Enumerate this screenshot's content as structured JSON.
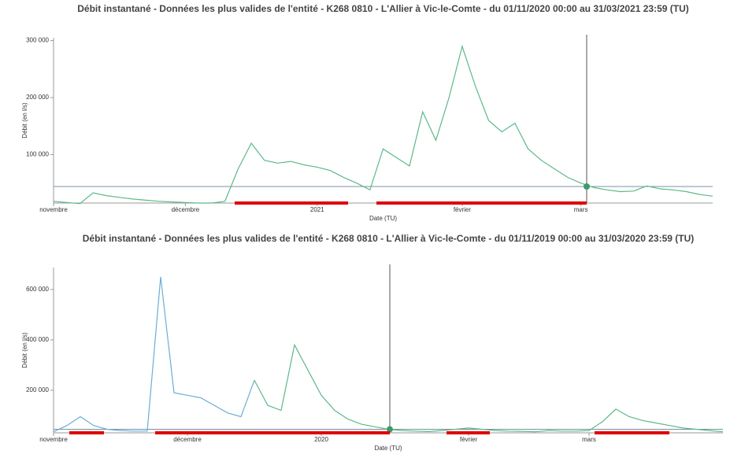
{
  "chart_data": [
    {
      "type": "line",
      "title": "Débit instantané - Données les plus valides de l'entité - K268 0810 - L'Allier à Vic-le-Comte - du 01/11/2020 00:00 au 31/03/2021 23:59 (TU)",
      "x_label": "Date (TU)",
      "y_label": "Débit (en l/s)",
      "categories": [
        "novembre",
        null,
        null,
        null,
        null,
        null,
        null,
        null,
        null,
        null,
        "décembre",
        null,
        null,
        null,
        null,
        null,
        null,
        null,
        null,
        null,
        "2021",
        null,
        null,
        null,
        null,
        null,
        null,
        null,
        null,
        null,
        null,
        "février",
        null,
        null,
        null,
        null,
        null,
        null,
        null,
        null,
        "mars",
        null,
        null,
        null,
        null,
        null,
        null,
        null,
        null,
        null,
        null
      ],
      "series": [
        {
          "color": "#5cb98a",
          "values": [
            18000,
            16000,
            14000,
            33000,
            28000,
            25000,
            22000,
            20000,
            18000,
            17000,
            16000,
            15000,
            15000,
            18000,
            75000,
            120000,
            90000,
            85000,
            88000,
            82000,
            78000,
            72000,
            60000,
            50000,
            38000,
            110000,
            95000,
            80000,
            175000,
            125000,
            200000,
            290000,
            220000,
            160000,
            140000,
            155000,
            110000,
            90000,
            75000,
            60000,
            50000,
            42000,
            38000,
            35000,
            36000,
            45000,
            40000,
            38000,
            35000,
            30000,
            27000
          ]
        }
      ],
      "threshold": 44000,
      "ylim": [
        15000,
        305000
      ],
      "yticks": [
        {
          "value": 100000,
          "label": "100 000"
        },
        {
          "value": 200000,
          "label": "200 000"
        },
        {
          "value": 300000,
          "label": "300 000"
        }
      ]
    },
    {
      "type": "line",
      "title": "Débit instantané - Données les plus valides de l'entité - K268 0810 - L'Allier à Vic-le-Comte - du 01/11/2019 00:00 au 31/03/2020 23:59 (TU)",
      "x_label": "Date (TU)",
      "y_label": "Débit (en l/s)",
      "categories": [
        "novembre",
        null,
        null,
        null,
        null,
        null,
        null,
        null,
        null,
        null,
        "décembre",
        null,
        null,
        null,
        null,
        null,
        null,
        null,
        null,
        null,
        "2020",
        null,
        null,
        null,
        null,
        null,
        null,
        null,
        null,
        null,
        null,
        "février",
        null,
        null,
        null,
        null,
        null,
        null,
        null,
        null,
        "mars",
        null,
        null,
        null,
        null,
        null,
        null,
        null,
        null,
        null,
        null
      ],
      "series": [
        {
          "color": "#6aaed6",
          "values": [
            35000,
            60000,
            95000,
            60000,
            45000,
            40000,
            38000,
            38000,
            650000,
            190000,
            180000,
            170000,
            140000,
            110000,
            95000,
            240000,
            null,
            null,
            null,
            null,
            null,
            null,
            null,
            null,
            null,
            null,
            null,
            null,
            null,
            null,
            null,
            null,
            null,
            null,
            null,
            null,
            null,
            null,
            null,
            null,
            null,
            null,
            null,
            null,
            null,
            null,
            null,
            null,
            null,
            null,
            null
          ]
        },
        {
          "color": "#5cb98a",
          "values": [
            null,
            null,
            null,
            null,
            null,
            null,
            null,
            null,
            null,
            null,
            null,
            null,
            null,
            null,
            null,
            240000,
            140000,
            120000,
            380000,
            280000,
            180000,
            120000,
            85000,
            65000,
            55000,
            45000,
            40000,
            38000,
            36000,
            40000,
            45000,
            50000,
            45000,
            40000,
            38000,
            37000,
            35000,
            40000,
            38000,
            38000,
            40000,
            75000,
            125000,
            95000,
            80000,
            70000,
            60000,
            50000,
            45000,
            40000,
            35000
          ]
        }
      ],
      "threshold": 45000,
      "ylim": [
        31000,
        687000
      ],
      "yticks": [
        {
          "value": 200000,
          "label": "200 000"
        },
        {
          "value": 400000,
          "label": "400 000"
        },
        {
          "value": 600000,
          "label": "600 000"
        }
      ]
    }
  ]
}
